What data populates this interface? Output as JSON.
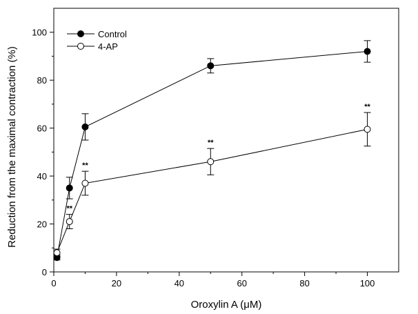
{
  "chart_data": {
    "type": "line",
    "title": "",
    "xlabel": "Oroxylin A (μM)",
    "ylabel": "Reduction from the maximal contraction (%)",
    "xlim": [
      0,
      110
    ],
    "ylim": [
      0,
      110
    ],
    "x_ticks": [
      0,
      20,
      40,
      60,
      80,
      100
    ],
    "y_ticks": [
      0,
      20,
      40,
      60,
      80,
      100
    ],
    "x_tick_labels": [
      "0",
      "20",
      "40",
      "60",
      "80",
      "100"
    ],
    "y_tick_labels": [
      "0",
      "20",
      "40",
      "60",
      "80",
      "100"
    ],
    "grid": false,
    "legend_position": "top-left",
    "series": [
      {
        "name": "Control",
        "marker": "filled-circle",
        "color": "#000000",
        "x": [
          1,
          5,
          10,
          50,
          100
        ],
        "y": [
          6,
          35,
          60.5,
          86,
          92
        ],
        "error": [
          1,
          4.5,
          5.5,
          3,
          4.5
        ]
      },
      {
        "name": "4-AP",
        "marker": "open-circle",
        "color": "#000000",
        "x": [
          1,
          5,
          10,
          50,
          100
        ],
        "y": [
          8,
          21,
          37,
          46,
          59.5
        ],
        "error": [
          1.5,
          3,
          5,
          5.5,
          7
        ],
        "significance": [
          "",
          "**",
          "**",
          "**",
          "**"
        ]
      }
    ]
  }
}
